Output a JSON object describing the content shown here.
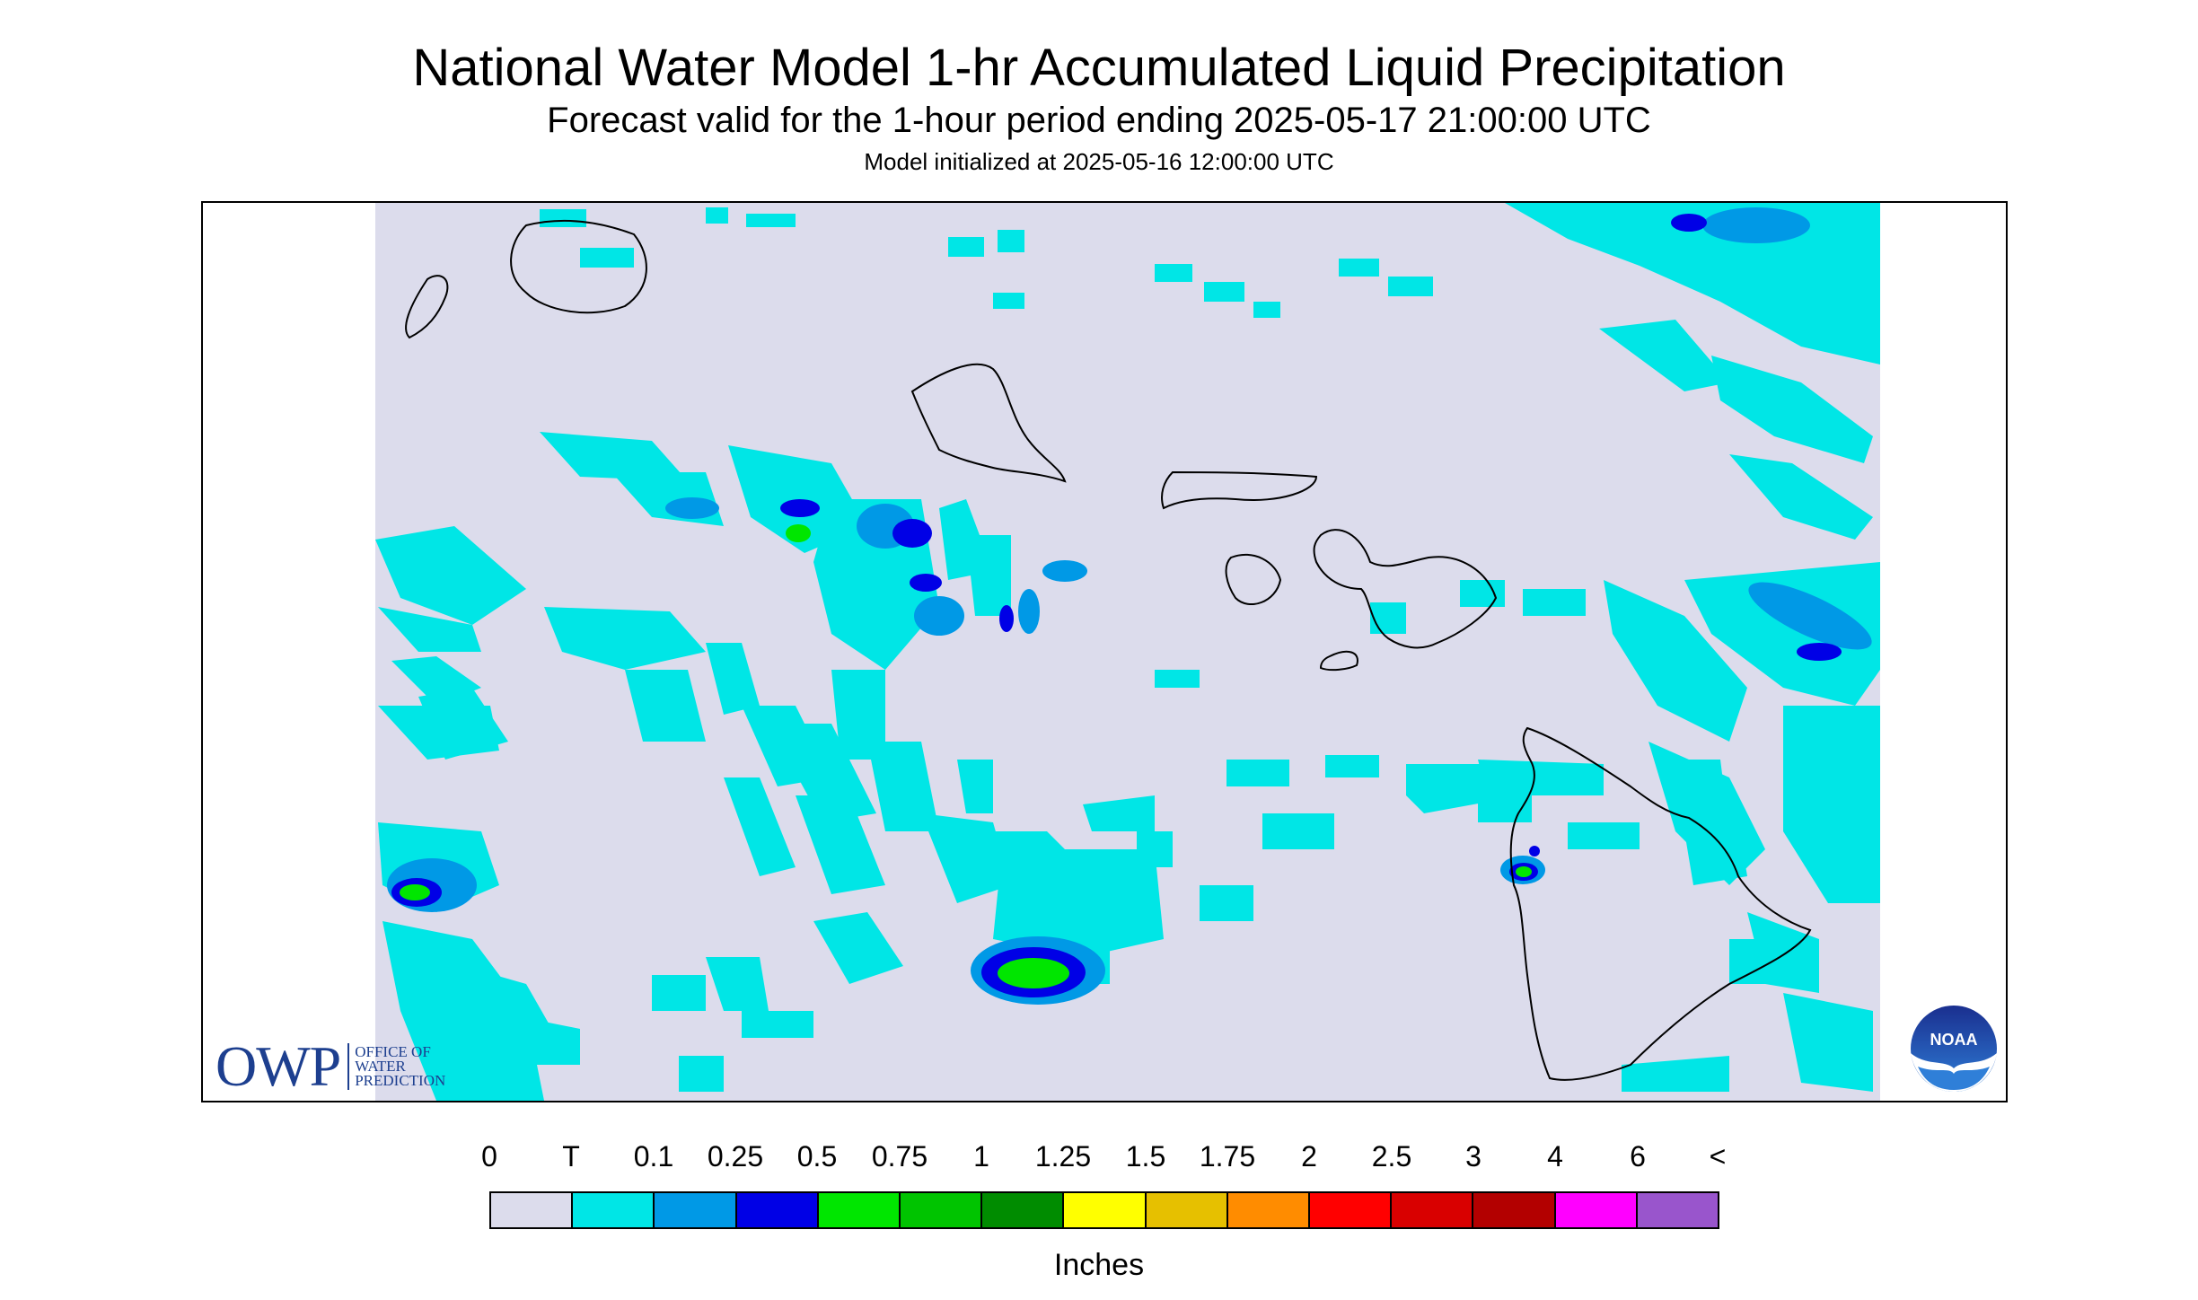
{
  "title": "National Water Model 1-hr Accumulated Liquid Precipitation",
  "subtitle": "Forecast valid for the 1-hour period ending 2025-05-17 21:00:00 UTC",
  "init_line": "Model initialized at 2025-05-16 12:00:00 UTC",
  "legend": {
    "labels": [
      "0",
      "T",
      "0.1",
      "0.25",
      "0.5",
      "0.75",
      "1",
      "1.25",
      "1.5",
      "1.75",
      "2",
      "2.5",
      "3",
      "4",
      "6",
      "<"
    ],
    "colors": [
      "#dcdcec",
      "#00e6e6",
      "#0099e6",
      "#0000e6",
      "#00e600",
      "#00c400",
      "#008c00",
      "#ffff00",
      "#e6c000",
      "#ff8c00",
      "#ff0000",
      "#d90000",
      "#b30000",
      "#ff00ff",
      "#9955cc"
    ],
    "units": "Inches"
  },
  "logos": {
    "owp_mark": "OWP",
    "owp_lines": [
      "OFFICE OF",
      "WATER",
      "PREDICTION"
    ],
    "noaa": "NOAA"
  }
}
